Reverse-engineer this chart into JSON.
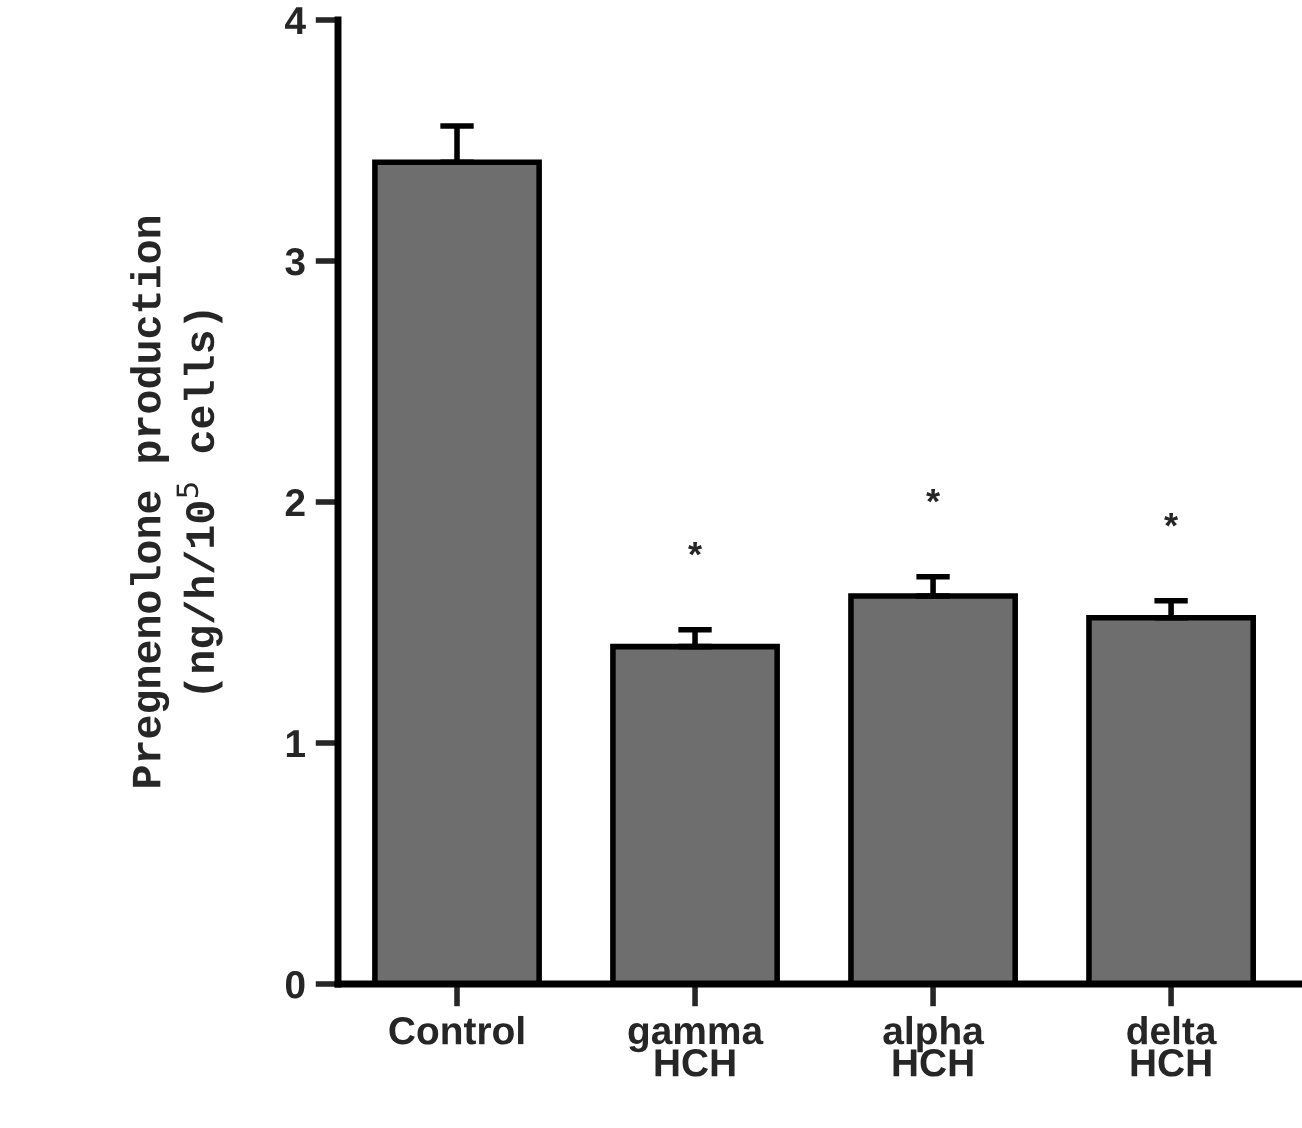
{
  "chart_data": {
    "type": "bar",
    "ylabel": "Pregnenolone production\n(ng/h/10$^{5}$ cells)",
    "categories": [
      "Control",
      "gamma\nHCH",
      "alpha\nHCH",
      "delta\nHCH"
    ],
    "values": [
      3.41,
      1.4,
      1.61,
      1.52
    ],
    "errors": [
      [
        3.41,
        3.56
      ],
      [
        1.4,
        1.47
      ],
      [
        1.61,
        1.69
      ],
      [
        1.52,
        1.59
      ]
    ],
    "color": "#6e6e6e",
    "ylim": [
      0,
      4
    ],
    "yticks": [
      0,
      1,
      2,
      3,
      4
    ],
    "grid": false,
    "legend": false,
    "annotations": [
      "*",
      "*",
      "*"
    ]
  }
}
